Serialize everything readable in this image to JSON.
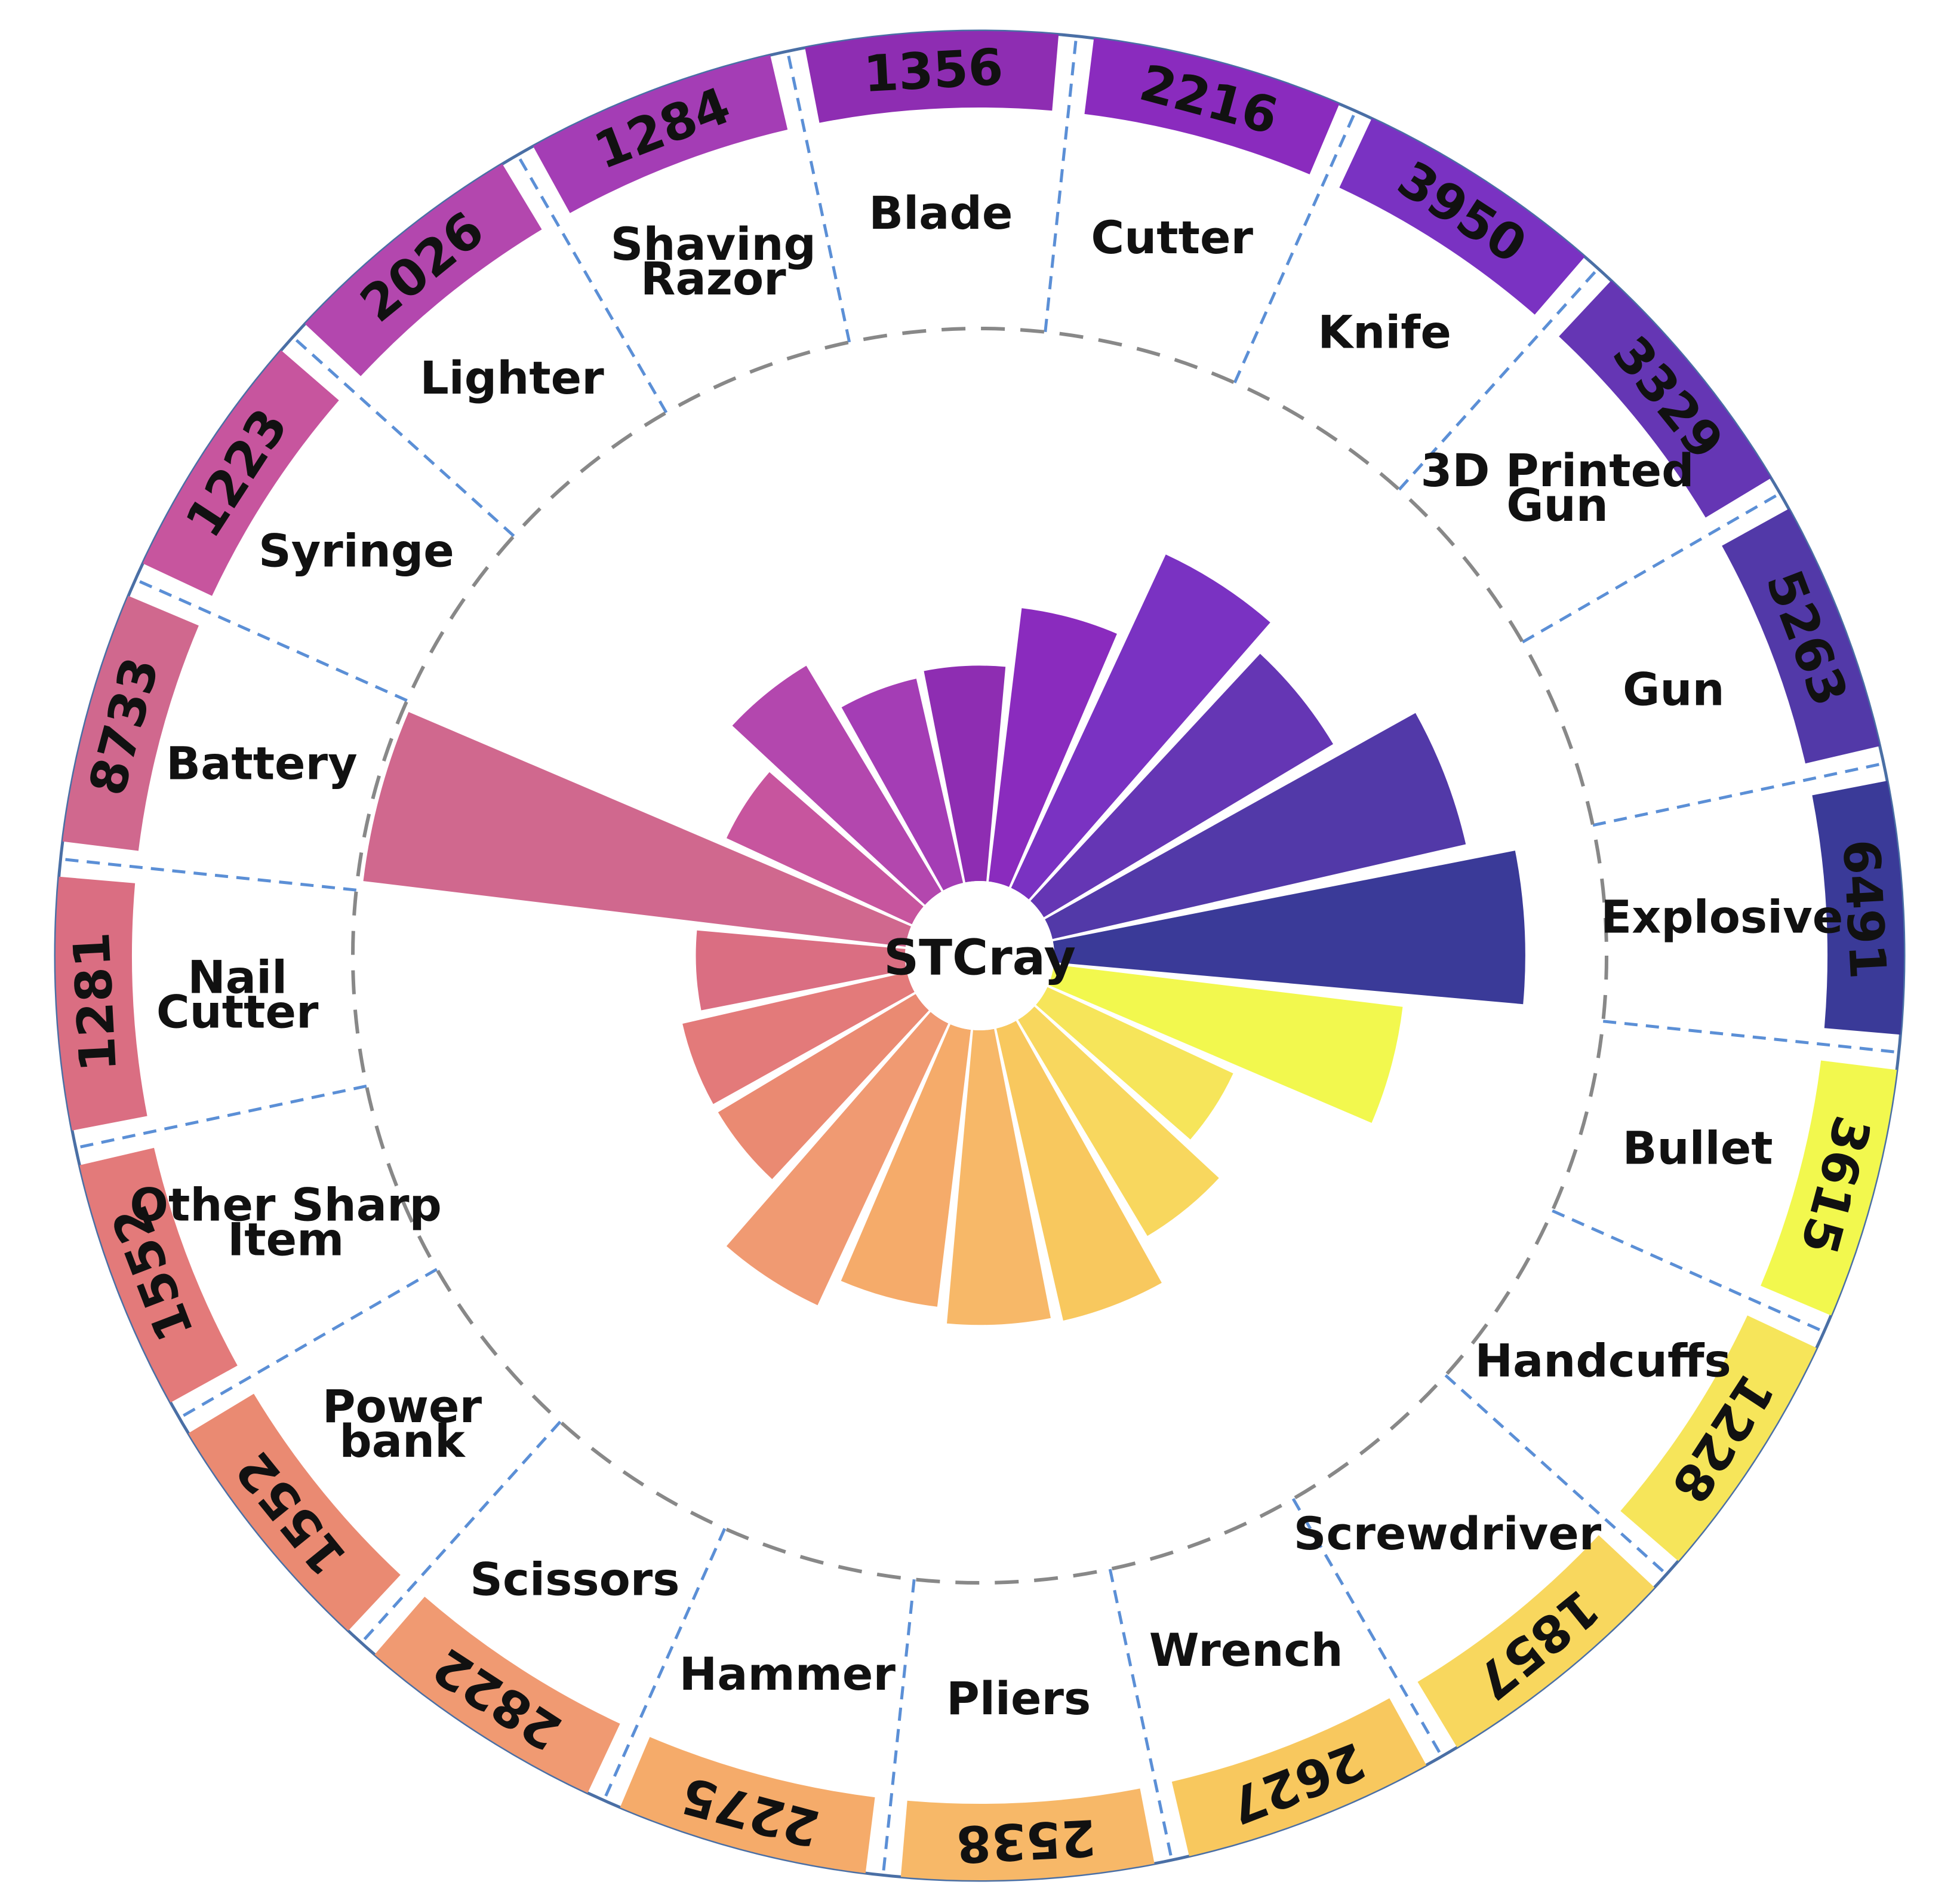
{
  "chart_data": {
    "type": "radial_bar",
    "title": "STCray",
    "categories": [
      {
        "name": "Blade",
        "lines": [
          "Blade"
        ],
        "count": 1356,
        "icon": "razor-blade-icon",
        "color": "#8E2DB2"
      },
      {
        "name": "Cutter",
        "lines": [
          "Cutter"
        ],
        "count": 2216,
        "icon": "box-cutter-icon",
        "color": "#8A2BBE"
      },
      {
        "name": "Knife",
        "lines": [
          "Knife"
        ],
        "count": 3950,
        "icon": "kitchen-knife-icon",
        "color": "#7A32C2"
      },
      {
        "name": "3D Printed Gun",
        "lines": [
          "3D Printed",
          "Gun"
        ],
        "count": 3329,
        "icon": "3d-printed-gun-icon",
        "color": "#6536B4"
      },
      {
        "name": "Gun",
        "lines": [
          "Gun"
        ],
        "count": 5263,
        "icon": "pistol-icon",
        "color": "#5239A8"
      },
      {
        "name": "Explosive",
        "lines": [
          "Explosive"
        ],
        "count": 6491,
        "icon": "explosive-device-icon",
        "color": "#3A3A98"
      },
      {
        "name": "Bullet",
        "lines": [
          "Bullet"
        ],
        "count": 3615,
        "icon": "bullet-icon",
        "color": "#F2F84E"
      },
      {
        "name": "Handcuffs",
        "lines": [
          "Handcuffs"
        ],
        "count": 1228,
        "icon": "handcuffs-icon",
        "color": "#F6E55A"
      },
      {
        "name": "Screwdriver",
        "lines": [
          "Screwdriver"
        ],
        "count": 1857,
        "icon": "screwdriver-icon",
        "color": "#F8D75E"
      },
      {
        "name": "Wrench",
        "lines": [
          "Wrench"
        ],
        "count": 2627,
        "icon": "wrench-icon",
        "color": "#F8C85E"
      },
      {
        "name": "Pliers",
        "lines": [
          "Pliers"
        ],
        "count": 2538,
        "icon": "pliers-icon",
        "color": "#F7B868"
      },
      {
        "name": "Hammer",
        "lines": [
          "Hammer"
        ],
        "count": 2275,
        "icon": "hammer-icon",
        "color": "#F5AB6A"
      },
      {
        "name": "Scissors",
        "lines": [
          "Scissors"
        ],
        "count": 2822,
        "icon": "scissors-icon",
        "color": "#F09A72"
      },
      {
        "name": "Power bank",
        "lines": [
          "Power",
          "bank"
        ],
        "count": 1552,
        "icon": "power-bank-icon",
        "color": "#EA8A72"
      },
      {
        "name": "Other Sharp Item",
        "lines": [
          "Other Sharp",
          "Item"
        ],
        "count": 1552,
        "icon": "trowel-icon",
        "color": "#E37A7A"
      },
      {
        "name": "Nail Cutter",
        "lines": [
          "Nail",
          "Cutter"
        ],
        "count": 1281,
        "icon": "nail-clipper-icon",
        "color": "#DA6E82"
      },
      {
        "name": "Battery",
        "lines": [
          "Battery"
        ],
        "count": 8733,
        "icon": "battery-icon",
        "color": "#D0688E"
      },
      {
        "name": "Syringe",
        "lines": [
          "Syringe"
        ],
        "count": 1223,
        "icon": "syringe-icon",
        "color": "#C7559E"
      },
      {
        "name": "Lighter",
        "lines": [
          "Lighter"
        ],
        "count": 2026,
        "icon": "lighter-icon",
        "color": "#B347AE"
      },
      {
        "name": "Shaving Razor",
        "lines": [
          "Shaving",
          "Razor"
        ],
        "count": 1284,
        "icon": "safety-razor-icon",
        "color": "#A43DB5"
      }
    ]
  }
}
